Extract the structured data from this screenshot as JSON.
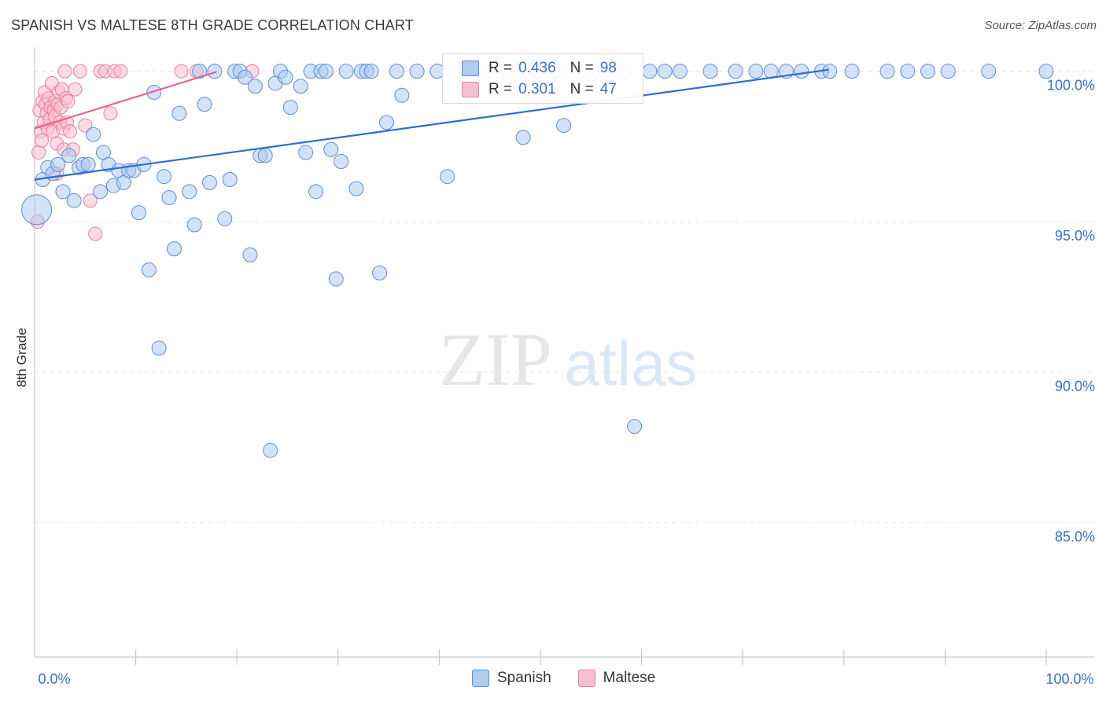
{
  "title": "SPANISH VS MALTESE 8TH GRADE CORRELATION CHART",
  "source": "Source: ZipAtlas.com",
  "watermark": {
    "zip": "ZIP",
    "atlas": "atlas"
  },
  "legend_top": {
    "rows": [
      {
        "r_label": "R =",
        "r_value": "0.436",
        "n_label": "N =",
        "n_value": "98"
      },
      {
        "r_label": "R =",
        "r_value": "0.301",
        "n_label": "N =",
        "n_value": "47"
      }
    ]
  },
  "legend_bottom": {
    "spanish": "Spanish",
    "maltese": "Maltese"
  },
  "colors": {
    "spanish_fill": "#aecbf0",
    "spanish_stroke": "#5b8fd6",
    "spanish_line": "#2a6fd1",
    "maltese_fill": "#f7bfd0",
    "maltese_stroke": "#e87f9f",
    "maltese_line": "#e0658c",
    "axis_label": "#3b72c4",
    "grid": "#e4e4e4"
  },
  "chart_data": {
    "type": "scatter",
    "title": "SPANISH VS MALTESE 8TH GRADE CORRELATION CHART",
    "xlabel": "",
    "ylabel": "8th Grade",
    "xlim": [
      0,
      100
    ],
    "ylim": [
      80.8,
      100.8
    ],
    "x_tick_labels": {
      "left": "0.0%",
      "right": "100.0%"
    },
    "y_ticks": [
      {
        "value": 100,
        "label": "100.0%"
      },
      {
        "value": 95,
        "label": "95.0%"
      },
      {
        "value": 90,
        "label": "90.0%"
      },
      {
        "value": 85,
        "label": "85.0%"
      }
    ],
    "series": [
      {
        "name": "Spanish",
        "r": 0.436,
        "n": 98,
        "trend": [
          [
            0,
            96.4
          ],
          [
            78.5,
            100.05
          ]
        ],
        "points": [
          [
            0.2,
            95.4,
            "L"
          ],
          [
            0.8,
            96.4
          ],
          [
            1.3,
            96.8
          ],
          [
            1.8,
            96.6
          ],
          [
            2.3,
            96.9
          ],
          [
            2.8,
            96.0
          ],
          [
            3.4,
            97.2
          ],
          [
            3.9,
            95.7
          ],
          [
            4.4,
            96.8
          ],
          [
            4.8,
            96.9
          ],
          [
            5.3,
            96.9
          ],
          [
            5.8,
            97.9
          ],
          [
            6.5,
            96.0
          ],
          [
            6.8,
            97.3
          ],
          [
            7.3,
            96.9
          ],
          [
            7.8,
            96.2
          ],
          [
            8.3,
            96.7
          ],
          [
            8.8,
            96.3
          ],
          [
            9.3,
            96.7
          ],
          [
            9.8,
            96.7
          ],
          [
            10.3,
            95.3
          ],
          [
            10.8,
            96.9
          ],
          [
            11.3,
            93.4
          ],
          [
            11.8,
            99.3
          ],
          [
            12.3,
            90.8
          ],
          [
            12.8,
            96.5
          ],
          [
            13.3,
            95.8
          ],
          [
            13.8,
            94.1
          ],
          [
            14.3,
            98.6
          ],
          [
            15.3,
            96.0
          ],
          [
            15.8,
            94.9
          ],
          [
            16.3,
            100.0
          ],
          [
            16.8,
            98.9
          ],
          [
            17.3,
            96.3
          ],
          [
            17.8,
            100.0
          ],
          [
            18.8,
            95.1
          ],
          [
            19.3,
            96.4
          ],
          [
            19.8,
            100.0
          ],
          [
            20.3,
            100.0
          ],
          [
            20.8,
            99.8
          ],
          [
            21.3,
            93.9
          ],
          [
            21.8,
            99.5
          ],
          [
            22.3,
            97.2
          ],
          [
            22.8,
            97.2
          ],
          [
            23.3,
            87.4
          ],
          [
            23.8,
            99.6
          ],
          [
            24.3,
            100.0
          ],
          [
            24.8,
            99.8
          ],
          [
            25.3,
            98.8
          ],
          [
            26.3,
            99.5
          ],
          [
            26.8,
            97.3
          ],
          [
            27.3,
            100.0
          ],
          [
            27.8,
            96.0
          ],
          [
            28.3,
            100.0
          ],
          [
            28.8,
            100.0
          ],
          [
            29.3,
            97.4
          ],
          [
            29.8,
            93.1
          ],
          [
            30.3,
            97.0
          ],
          [
            30.8,
            100.0
          ],
          [
            31.8,
            96.1
          ],
          [
            32.3,
            100.0
          ],
          [
            32.8,
            100.0
          ],
          [
            33.3,
            100.0
          ],
          [
            34.1,
            93.3
          ],
          [
            34.8,
            98.3
          ],
          [
            35.8,
            100.0
          ],
          [
            36.3,
            99.2
          ],
          [
            37.8,
            100.0
          ],
          [
            39.8,
            100.0
          ],
          [
            40.8,
            96.5
          ],
          [
            42.8,
            100.0
          ],
          [
            44.8,
            100.0
          ],
          [
            46.8,
            100.0
          ],
          [
            47.8,
            100.0
          ],
          [
            48.3,
            97.8
          ],
          [
            49.8,
            100.0
          ],
          [
            51.3,
            100.0
          ],
          [
            52.3,
            98.2
          ],
          [
            53.8,
            100.0
          ],
          [
            55.8,
            100.0
          ],
          [
            58.3,
            100.0
          ],
          [
            59.3,
            88.2
          ],
          [
            60.8,
            100.0
          ],
          [
            62.3,
            100.0
          ],
          [
            63.8,
            100.0
          ],
          [
            66.8,
            100.0
          ],
          [
            69.3,
            100.0
          ],
          [
            71.3,
            100.0
          ],
          [
            72.8,
            100.0
          ],
          [
            74.3,
            100.0
          ],
          [
            75.8,
            100.0
          ],
          [
            77.8,
            100.0
          ],
          [
            78.6,
            100.0
          ],
          [
            80.8,
            100.0
          ],
          [
            84.3,
            100.0
          ],
          [
            86.3,
            100.0
          ],
          [
            88.3,
            100.0
          ],
          [
            90.3,
            100.0
          ],
          [
            94.3,
            100.0
          ],
          [
            100.0,
            100.0
          ]
        ]
      },
      {
        "name": "Maltese",
        "r": 0.301,
        "n": 47,
        "trend": [
          [
            0,
            98.1
          ],
          [
            18.0,
            99.98
          ]
        ],
        "points": [
          [
            0.3,
            95.0
          ],
          [
            0.4,
            97.3
          ],
          [
            0.5,
            98.7
          ],
          [
            0.6,
            98.0
          ],
          [
            0.7,
            97.7
          ],
          [
            0.8,
            99.0
          ],
          [
            0.9,
            98.3
          ],
          [
            1.0,
            99.3
          ],
          [
            1.1,
            98.9
          ],
          [
            1.2,
            98.6
          ],
          [
            1.3,
            98.1
          ],
          [
            1.4,
            99.1
          ],
          [
            1.5,
            98.4
          ],
          [
            1.6,
            98.8
          ],
          [
            1.7,
            99.6
          ],
          [
            1.8,
            98.0
          ],
          [
            1.9,
            98.7
          ],
          [
            2.0,
            98.5
          ],
          [
            2.1,
            99.0
          ],
          [
            2.2,
            97.6
          ],
          [
            2.3,
            98.9
          ],
          [
            2.4,
            99.3
          ],
          [
            2.5,
            98.3
          ],
          [
            2.6,
            98.8
          ],
          [
            2.7,
            99.4
          ],
          [
            2.8,
            98.1
          ],
          [
            2.9,
            97.4
          ],
          [
            3.0,
            100.0
          ],
          [
            3.1,
            99.1
          ],
          [
            3.2,
            98.3
          ],
          [
            3.3,
            99.0
          ],
          [
            3.5,
            98.0
          ],
          [
            3.8,
            97.4
          ],
          [
            4.0,
            99.4
          ],
          [
            4.5,
            100.0
          ],
          [
            5.0,
            98.2
          ],
          [
            5.5,
            95.7
          ],
          [
            6.0,
            94.6
          ],
          [
            6.5,
            100.0
          ],
          [
            7.0,
            100.0
          ],
          [
            7.5,
            98.6
          ],
          [
            7.9,
            100.0
          ],
          [
            8.5,
            100.0
          ],
          [
            14.5,
            100.0
          ],
          [
            16.0,
            100.0
          ],
          [
            21.5,
            100.0
          ],
          [
            2.2,
            96.6
          ]
        ]
      }
    ]
  }
}
